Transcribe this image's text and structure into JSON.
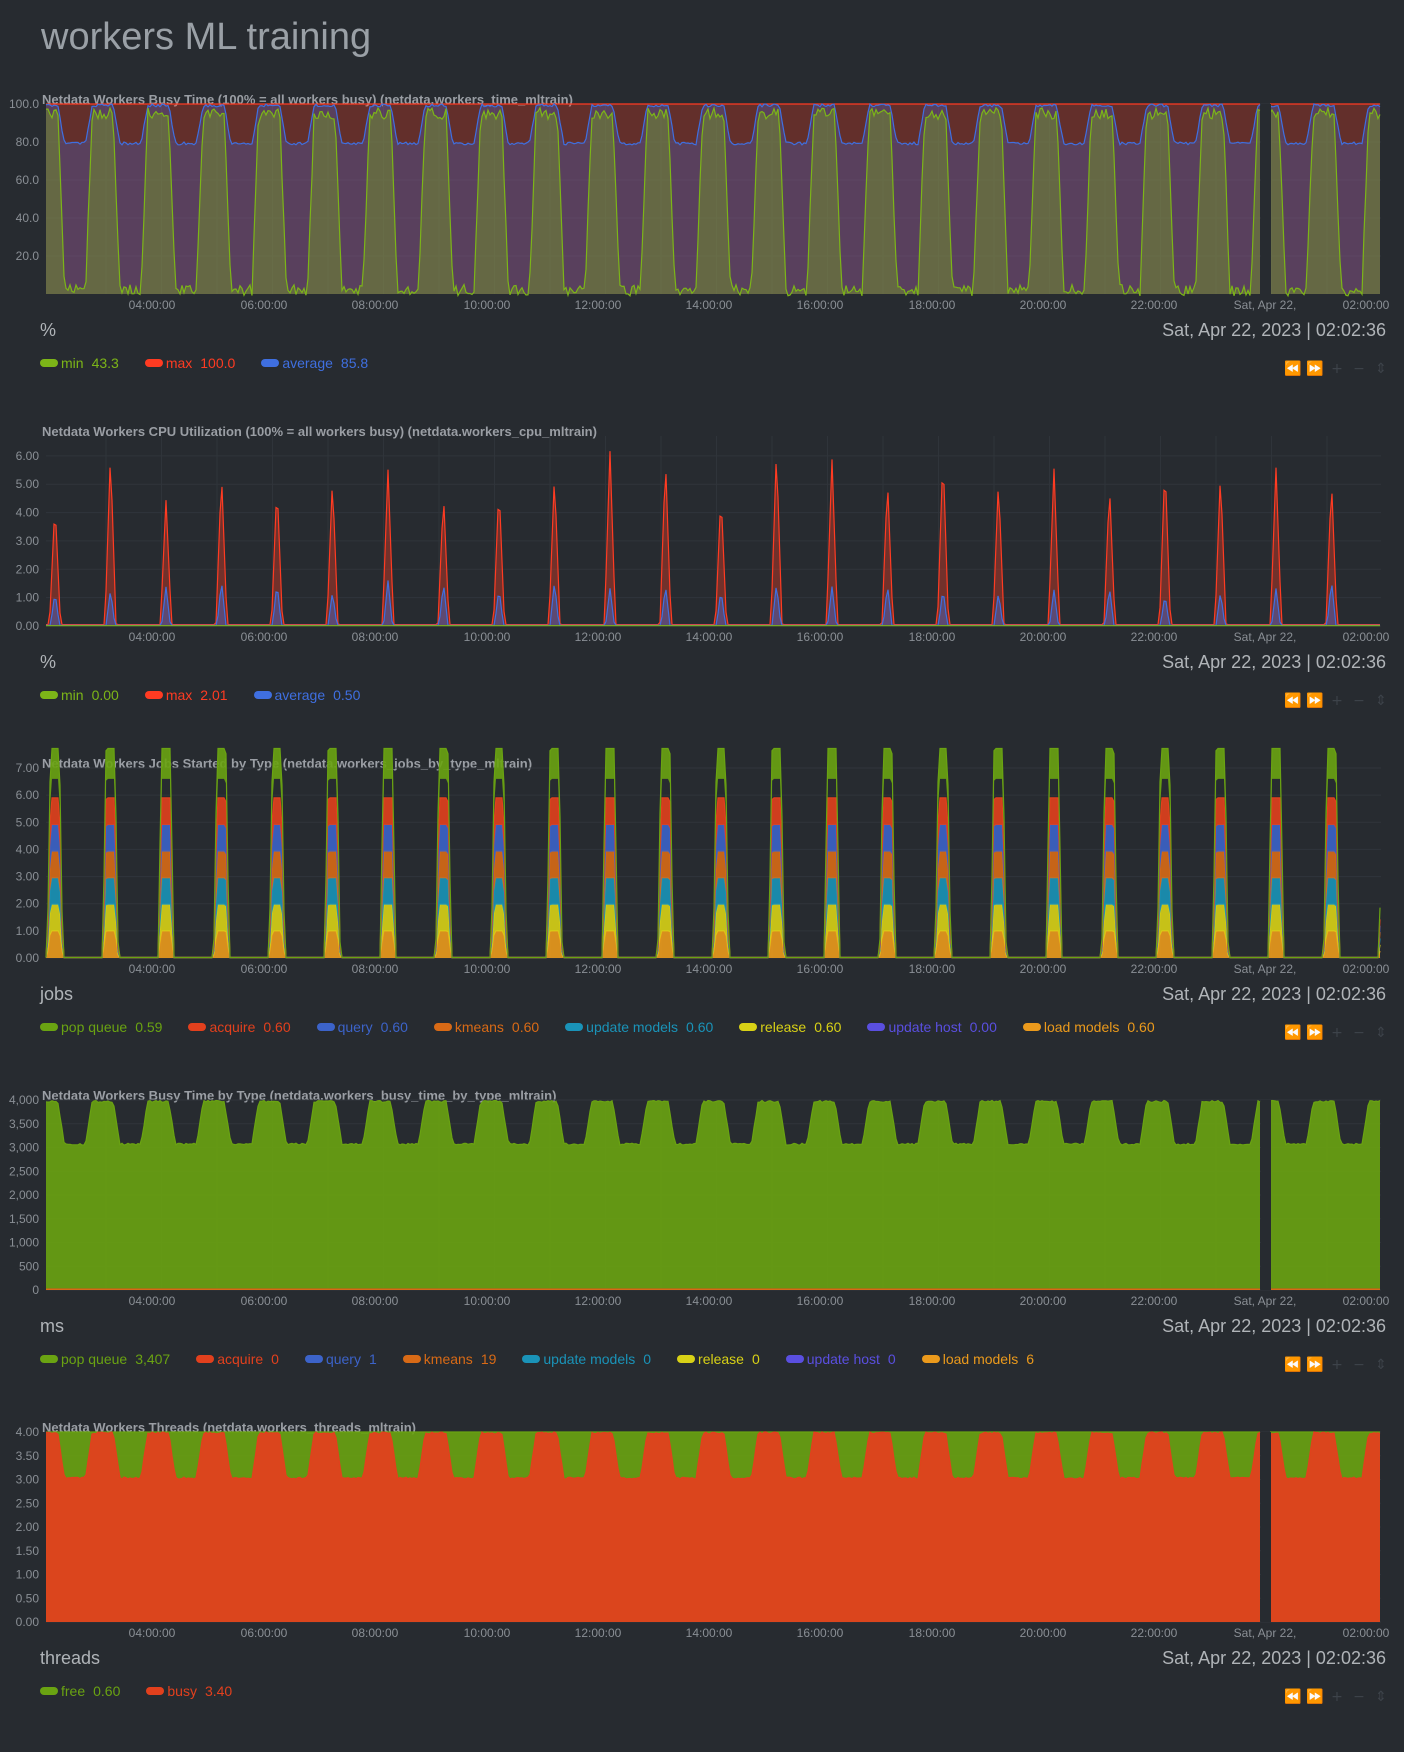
{
  "page": {
    "title": "workers ML training"
  },
  "x_ticks": [
    "04:00:00",
    "06:00:00",
    "08:00:00",
    "10:00:00",
    "12:00:00",
    "14:00:00",
    "16:00:00",
    "18:00:00",
    "20:00:00",
    "22:00:00",
    "Sat, Apr 22,",
    "02:00:00"
  ],
  "toolbox": {
    "pan_left_icon": "⏪",
    "pan_right_icon": "⏩",
    "zoom_in_icon": "+",
    "zoom_out_icon": "−",
    "resize_icon": "⇕"
  },
  "chart_data": [
    {
      "type": "area",
      "title": "Netdata Workers Busy Time (100% = all workers busy) (netdata.workers_time_mltrain)",
      "units": "%",
      "datetime": "Sat, Apr 22, 2023 | 02:02:36",
      "y_ticks": [
        "100.0",
        "80.0",
        "60.0",
        "40.0",
        "20.0"
      ],
      "ylim": [
        0,
        100
      ],
      "gap": true,
      "pattern": "busy",
      "series": [
        {
          "name": "min",
          "value": "43.3",
          "color": "#7cb518"
        },
        {
          "name": "max",
          "value": "100.0",
          "color": "#ff3b22"
        },
        {
          "name": "average",
          "value": "85.8",
          "color": "#3f6fe0"
        }
      ]
    },
    {
      "type": "area",
      "title": "Netdata Workers CPU Utilization (100% = all workers busy) (netdata.workers_cpu_mltrain)",
      "units": "%",
      "datetime": "Sat, Apr 22, 2023 | 02:02:36",
      "y_ticks": [
        "6.00",
        "5.00",
        "4.00",
        "3.00",
        "2.00",
        "1.00",
        "0.00"
      ],
      "ylim": [
        0,
        6.7
      ],
      "gap": false,
      "pattern": "cpu",
      "series": [
        {
          "name": "min",
          "value": "0.00",
          "color": "#7cb518"
        },
        {
          "name": "max",
          "value": "2.01",
          "color": "#ff3b22"
        },
        {
          "name": "average",
          "value": "0.50",
          "color": "#3f6fe0"
        }
      ]
    },
    {
      "type": "area",
      "title": "Netdata Workers Jobs Started by Type (netdata.workers_jobs_by_type_mltrain)",
      "units": "jobs",
      "datetime": "Sat, Apr 22, 2023 | 02:02:36",
      "y_ticks": [
        "7.00",
        "6.00",
        "5.00",
        "4.00",
        "3.00",
        "2.00",
        "1.00",
        "0.00"
      ],
      "ylim": [
        0,
        7
      ],
      "gap": false,
      "pattern": "jobs",
      "series": [
        {
          "name": "pop queue",
          "value": "0.59",
          "color": "#6aa312"
        },
        {
          "name": "acquire",
          "value": "0.60",
          "color": "#e2401d"
        },
        {
          "name": "query",
          "value": "0.60",
          "color": "#3c63c9"
        },
        {
          "name": "kmeans",
          "value": "0.60",
          "color": "#d86a16"
        },
        {
          "name": "update models",
          "value": "0.60",
          "color": "#1a93b8"
        },
        {
          "name": "release",
          "value": "0.60",
          "color": "#d8d116"
        },
        {
          "name": "update host",
          "value": "0.00",
          "color": "#5a4fe0"
        },
        {
          "name": "load models",
          "value": "0.60",
          "color": "#eb9a1c"
        }
      ]
    },
    {
      "type": "area",
      "title": "Netdata Workers Busy Time by Type (netdata.workers_busy_time_by_type_mltrain)",
      "units": "ms",
      "datetime": "Sat, Apr 22, 2023 | 02:02:36",
      "y_ticks": [
        "4,000",
        "3,500",
        "3,000",
        "2,500",
        "2,000",
        "1,500",
        "1,000",
        "500",
        "0"
      ],
      "ylim": [
        0,
        4000
      ],
      "gap": true,
      "pattern": "busytype",
      "series": [
        {
          "name": "pop queue",
          "value": "3,407",
          "color": "#6aa312"
        },
        {
          "name": "acquire",
          "value": "0",
          "color": "#e2401d"
        },
        {
          "name": "query",
          "value": "1",
          "color": "#3c63c9"
        },
        {
          "name": "kmeans",
          "value": "19",
          "color": "#d86a16"
        },
        {
          "name": "update models",
          "value": "0",
          "color": "#1a93b8"
        },
        {
          "name": "release",
          "value": "0",
          "color": "#d8d116"
        },
        {
          "name": "update host",
          "value": "0",
          "color": "#5a4fe0"
        },
        {
          "name": "load models",
          "value": "6",
          "color": "#eb9a1c"
        }
      ]
    },
    {
      "type": "area",
      "title": "Netdata Workers Threads (netdata.workers_threads_mltrain)",
      "units": "threads",
      "datetime": "Sat, Apr 22, 2023 | 02:02:36",
      "y_ticks": [
        "4.00",
        "3.50",
        "3.00",
        "2.50",
        "2.00",
        "1.50",
        "1.00",
        "0.50",
        "0.00"
      ],
      "ylim": [
        0,
        4
      ],
      "gap": true,
      "pattern": "threads",
      "series": [
        {
          "name": "free",
          "value": "0.60",
          "color": "#6aa312"
        },
        {
          "name": "busy",
          "value": "3.40",
          "color": "#e2401d"
        }
      ]
    }
  ]
}
